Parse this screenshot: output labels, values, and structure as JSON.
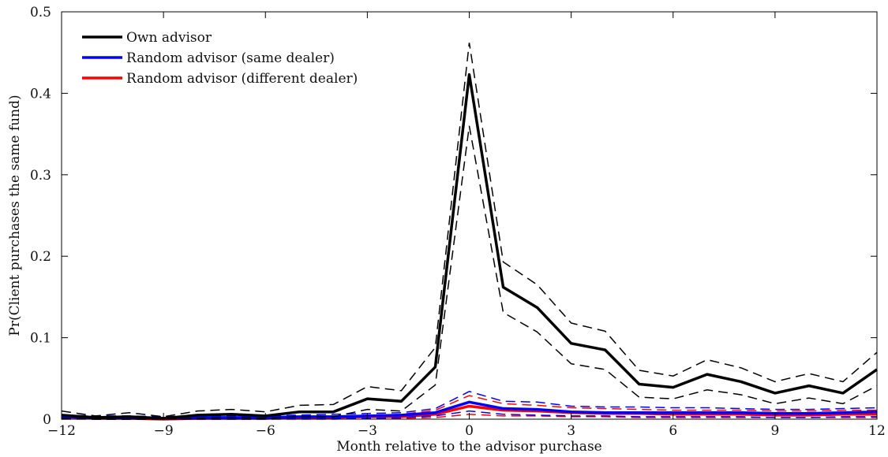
{
  "chart_data": {
    "type": "line",
    "xlabel": "Month relative to the advisor purchase",
    "ylabel": "Pr(Client purchases the same fund)",
    "xlim": [
      -12,
      12
    ],
    "ylim": [
      0,
      0.5
    ],
    "xticks": [
      -12,
      -9,
      -6,
      -3,
      0,
      3,
      6,
      9,
      12
    ],
    "xtick_labels": [
      "−12",
      "−9",
      "−6",
      "−3",
      "0",
      "3",
      "6",
      "9",
      "12"
    ],
    "yticks": [
      0,
      0.1,
      0.2,
      0.3,
      0.4,
      0.5
    ],
    "ytick_labels": [
      "0",
      "0.1",
      "0.2",
      "0.3",
      "0.4",
      "0.5"
    ],
    "grid": false,
    "legend_position": "top-left",
    "x": [
      -12,
      -11,
      -10,
      -9,
      -8,
      -7,
      -6,
      -5,
      -4,
      -3,
      -2,
      -1,
      0,
      1,
      2,
      3,
      4,
      5,
      6,
      7,
      8,
      9,
      10,
      11,
      12
    ],
    "series": [
      {
        "name": "Own advisor",
        "color": "#000000",
        "values": [
          0.005,
          0.002,
          0.003,
          0.001,
          0.005,
          0.006,
          0.004,
          0.009,
          0.009,
          0.025,
          0.022,
          0.064,
          0.423,
          0.162,
          0.137,
          0.093,
          0.085,
          0.043,
          0.039,
          0.055,
          0.046,
          0.032,
          0.041,
          0.032,
          0.061
        ],
        "lower": [
          0.001,
          0.0,
          0.0,
          0.0,
          0.001,
          0.002,
          0.001,
          0.003,
          0.003,
          0.012,
          0.01,
          0.042,
          0.36,
          0.131,
          0.107,
          0.068,
          0.061,
          0.027,
          0.025,
          0.036,
          0.03,
          0.019,
          0.026,
          0.019,
          0.041
        ],
        "upper": [
          0.01,
          0.004,
          0.008,
          0.003,
          0.01,
          0.012,
          0.009,
          0.017,
          0.018,
          0.04,
          0.035,
          0.088,
          0.462,
          0.193,
          0.165,
          0.118,
          0.108,
          0.06,
          0.053,
          0.073,
          0.063,
          0.046,
          0.056,
          0.046,
          0.082
        ]
      },
      {
        "name": "Random advisor (same dealer)",
        "color": "#0000ff",
        "values": [
          0.003,
          0.002,
          0.002,
          0.001,
          0.002,
          0.002,
          0.002,
          0.003,
          0.003,
          0.004,
          0.005,
          0.008,
          0.021,
          0.013,
          0.012,
          0.009,
          0.008,
          0.008,
          0.008,
          0.008,
          0.008,
          0.007,
          0.007,
          0.008,
          0.009
        ],
        "lower": [
          0.001,
          0.0,
          0.0,
          0.0,
          0.0,
          0.0,
          0.0,
          0.001,
          0.001,
          0.001,
          0.002,
          0.004,
          0.01,
          0.006,
          0.005,
          0.004,
          0.004,
          0.003,
          0.003,
          0.003,
          0.003,
          0.002,
          0.002,
          0.003,
          0.003
        ],
        "upper": [
          0.005,
          0.004,
          0.004,
          0.003,
          0.004,
          0.004,
          0.004,
          0.005,
          0.006,
          0.007,
          0.008,
          0.013,
          0.034,
          0.022,
          0.021,
          0.016,
          0.015,
          0.015,
          0.014,
          0.014,
          0.013,
          0.012,
          0.012,
          0.013,
          0.014
        ]
      },
      {
        "name": "Random advisor (different dealer)",
        "color": "#ff0000",
        "values": [
          0.003,
          0.001,
          0.001,
          0.0,
          0.001,
          0.001,
          0.001,
          0.002,
          0.002,
          0.003,
          0.003,
          0.006,
          0.016,
          0.011,
          0.01,
          0.008,
          0.007,
          0.007,
          0.006,
          0.006,
          0.006,
          0.005,
          0.005,
          0.006,
          0.006
        ],
        "lower": [
          0.0,
          0.0,
          0.0,
          0.0,
          0.0,
          0.0,
          0.0,
          0.0,
          0.0,
          0.001,
          0.001,
          0.002,
          0.006,
          0.004,
          0.004,
          0.003,
          0.003,
          0.002,
          0.002,
          0.002,
          0.002,
          0.002,
          0.002,
          0.002,
          0.002
        ],
        "upper": [
          0.005,
          0.003,
          0.003,
          0.002,
          0.003,
          0.003,
          0.003,
          0.004,
          0.004,
          0.005,
          0.006,
          0.011,
          0.029,
          0.019,
          0.017,
          0.014,
          0.013,
          0.012,
          0.011,
          0.011,
          0.011,
          0.01,
          0.01,
          0.011,
          0.011
        ]
      }
    ]
  }
}
